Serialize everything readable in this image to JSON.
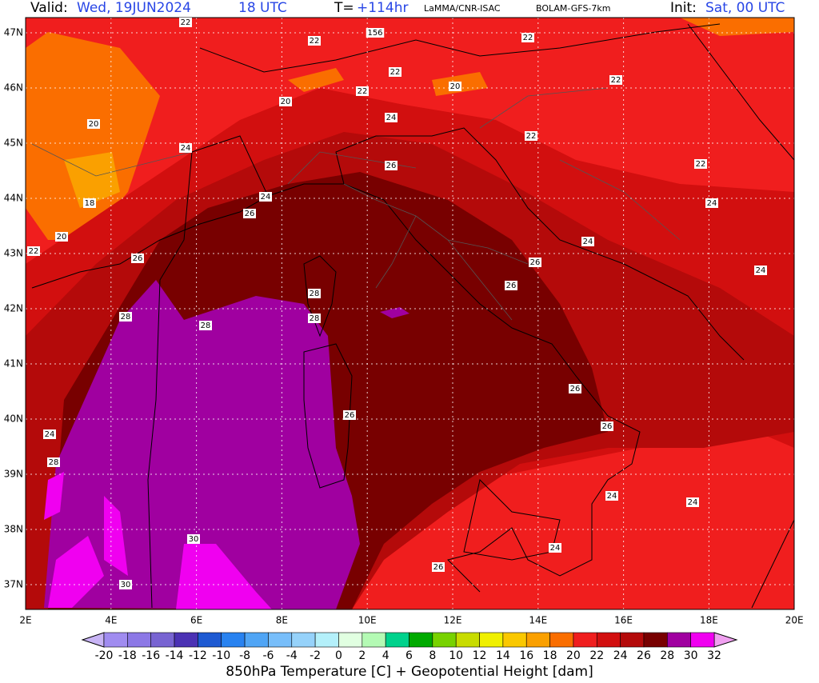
{
  "header": {
    "valid_label": "Valid:",
    "valid_date": "Wed, 19JUN2024",
    "valid_time": "18 UTC",
    "lead_label": "T=",
    "lead": "+114hr",
    "source": "LaMMA/CNR-ISAC",
    "model": "BOLAM-GFS-7km",
    "init_label": "Init:",
    "init": "Sat, 00 UTC"
  },
  "map": {
    "lat_labels": [
      "47N",
      "46N",
      "45N",
      "44N",
      "43N",
      "42N",
      "41N",
      "40N",
      "39N",
      "38N",
      "37N"
    ],
    "lon_labels": [
      "2E",
      "4E",
      "6E",
      "8E",
      "10E",
      "12E",
      "14E",
      "16E",
      "18E",
      "20E"
    ],
    "contour_labels": [
      22,
      22,
      156,
      22,
      22,
      22,
      20,
      22,
      20,
      20,
      24,
      22,
      24,
      26,
      22,
      24,
      18,
      24,
      26,
      20,
      22,
      24,
      26,
      26,
      24,
      26,
      28,
      28,
      28,
      28,
      26,
      26,
      24,
      26,
      28,
      24,
      24,
      30,
      24,
      26,
      30
    ]
  },
  "colorbar": {
    "levels": [
      -20,
      -18,
      -16,
      -14,
      -12,
      -10,
      -8,
      -6,
      -4,
      -2,
      0,
      2,
      4,
      6,
      8,
      10,
      12,
      14,
      16,
      18,
      20,
      22,
      24,
      26,
      28,
      30,
      32
    ],
    "colors": [
      "#a08cf0",
      "#8c78e6",
      "#7864d2",
      "#4b32b4",
      "#1e5ad2",
      "#2882f0",
      "#50a5f5",
      "#78befa",
      "#96d2fa",
      "#b4f0fa",
      "#e1ffe1",
      "#b4fab4",
      "#00d28c",
      "#00aa00",
      "#78d200",
      "#c8dc00",
      "#f0f000",
      "#fac800",
      "#faa000",
      "#fa6e00",
      "#f01e1e",
      "#d20f0f",
      "#b40a0a",
      "#780000",
      "#a000a0",
      "#f000f0"
    ],
    "under_color": "#c8b4f5",
    "over_color": "#f0a0f0",
    "title": "850hPa Temperature [C] + Geopotential Height [dam]"
  }
}
